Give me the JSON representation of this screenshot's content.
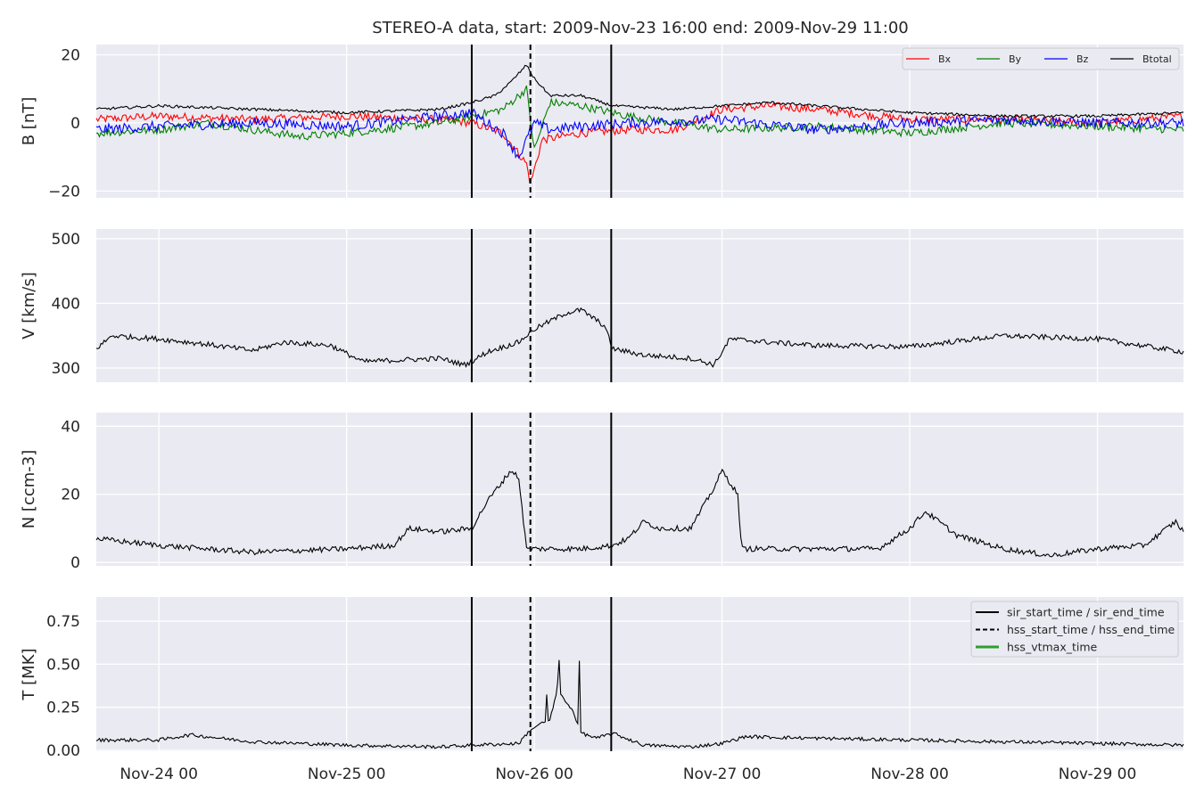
{
  "chart_data": {
    "type": "line",
    "title": "STEREO-A data, start: 2009-Nov-23 16:00  end: 2009-Nov-29 11:00",
    "x_range": [
      "2009-11-23 16:00",
      "2009-11-29 11:00"
    ],
    "x_ticks": [
      {
        "t": "2009-11-24 00:00",
        "label": "Nov-24 00"
      },
      {
        "t": "2009-11-25 00:00",
        "label": "Nov-25 00"
      },
      {
        "t": "2009-11-26 00:00",
        "label": "Nov-26 00"
      },
      {
        "t": "2009-11-27 00:00",
        "label": "Nov-27 00"
      },
      {
        "t": "2009-11-28 00:00",
        "label": "Nov-28 00"
      },
      {
        "t": "2009-11-29 00:00",
        "label": "Nov-29 00"
      }
    ],
    "event_lines": [
      {
        "t": "2009-11-25 16:00",
        "style": "solid"
      },
      {
        "t": "2009-11-25 23:30",
        "style": "dashed"
      },
      {
        "t": "2009-11-26 09:50",
        "style": "solid"
      }
    ],
    "panels": [
      {
        "ylabel": "B [nT]",
        "ylim": [
          -22,
          23
        ],
        "yticks": [
          20,
          0,
          -20
        ],
        "ytick_labels": [
          "20",
          "0",
          "−20"
        ],
        "legend": {
          "position": "top-right",
          "entries": [
            "Bx",
            "By",
            "Bz",
            "Btotal"
          ]
        },
        "series": [
          {
            "name": "Bx",
            "color": "#ff0000",
            "noise": 1.2,
            "points": [
              [
                "2009-11-23 16:00",
                1
              ],
              [
                "2009-11-24 00:00",
                2
              ],
              [
                "2009-11-24 12:00",
                1
              ],
              [
                "2009-11-25 00:00",
                2
              ],
              [
                "2009-11-25 12:00",
                1
              ],
              [
                "2009-11-25 16:00",
                0
              ],
              [
                "2009-11-25 20:00",
                -3
              ],
              [
                "2009-11-25 23:00",
                -12
              ],
              [
                "2009-11-25 23:30",
                -18
              ],
              [
                "2009-11-26 01:00",
                -5
              ],
              [
                "2009-11-26 06:00",
                -3
              ],
              [
                "2009-11-26 12:00",
                -2
              ],
              [
                "2009-11-26 18:00",
                -2
              ],
              [
                "2009-11-27 00:00",
                4
              ],
              [
                "2009-11-27 06:00",
                5
              ],
              [
                "2009-11-27 12:00",
                4
              ],
              [
                "2009-11-28 00:00",
                1
              ],
              [
                "2009-11-28 12:00",
                1
              ],
              [
                "2009-11-29 00:00",
                0
              ],
              [
                "2009-11-29 11:00",
                2
              ]
            ]
          },
          {
            "name": "By",
            "color": "#008000",
            "noise": 1.2,
            "points": [
              [
                "2009-11-23 16:00",
                -3
              ],
              [
                "2009-11-24 00:00",
                -2
              ],
              [
                "2009-11-24 06:00",
                0
              ],
              [
                "2009-11-24 18:00",
                -4
              ],
              [
                "2009-11-25 00:00",
                -3
              ],
              [
                "2009-11-25 12:00",
                0
              ],
              [
                "2009-11-25 16:00",
                2
              ],
              [
                "2009-11-25 20:00",
                4
              ],
              [
                "2009-11-25 23:00",
                10
              ],
              [
                "2009-11-26 00:00",
                -8
              ],
              [
                "2009-11-26 02:00",
                6
              ],
              [
                "2009-11-26 06:00",
                5
              ],
              [
                "2009-11-26 12:00",
                2
              ],
              [
                "2009-11-27 00:00",
                -2
              ],
              [
                "2009-11-27 12:00",
                -1
              ],
              [
                "2009-11-28 00:00",
                -3
              ],
              [
                "2009-11-28 12:00",
                0
              ],
              [
                "2009-11-29 00:00",
                -1
              ],
              [
                "2009-11-29 11:00",
                -2
              ]
            ]
          },
          {
            "name": "Bz",
            "color": "#0000ff",
            "noise": 1.5,
            "points": [
              [
                "2009-11-23 16:00",
                -2
              ],
              [
                "2009-11-24 00:00",
                -1
              ],
              [
                "2009-11-24 12:00",
                0
              ],
              [
                "2009-11-25 00:00",
                -1
              ],
              [
                "2009-11-25 12:00",
                2
              ],
              [
                "2009-11-25 16:00",
                3
              ],
              [
                "2009-11-25 20:00",
                -3
              ],
              [
                "2009-11-25 22:00",
                -10
              ],
              [
                "2009-11-26 00:00",
                0
              ],
              [
                "2009-11-26 02:00",
                -2
              ],
              [
                "2009-11-26 06:00",
                -1
              ],
              [
                "2009-11-26 12:00",
                0
              ],
              [
                "2009-11-27 00:00",
                1
              ],
              [
                "2009-11-27 12:00",
                -2
              ],
              [
                "2009-11-28 00:00",
                0
              ],
              [
                "2009-11-28 12:00",
                1
              ],
              [
                "2009-11-29 00:00",
                0
              ],
              [
                "2009-11-29 11:00",
                0
              ]
            ]
          },
          {
            "name": "Btotal",
            "color": "#000000",
            "noise": 0.4,
            "points": [
              [
                "2009-11-23 16:00",
                4
              ],
              [
                "2009-11-24 00:00",
                5
              ],
              [
                "2009-11-24 12:00",
                4
              ],
              [
                "2009-11-25 00:00",
                3
              ],
              [
                "2009-11-25 12:00",
                4
              ],
              [
                "2009-11-25 16:00",
                6
              ],
              [
                "2009-11-25 19:00",
                8
              ],
              [
                "2009-11-25 21:00",
                12
              ],
              [
                "2009-11-25 23:00",
                17
              ],
              [
                "2009-11-26 00:00",
                13
              ],
              [
                "2009-11-26 02:00",
                8
              ],
              [
                "2009-11-26 06:00",
                8
              ],
              [
                "2009-11-26 10:00",
                5
              ],
              [
                "2009-11-26 18:00",
                4
              ],
              [
                "2009-11-27 00:00",
                5
              ],
              [
                "2009-11-27 06:00",
                6
              ],
              [
                "2009-11-27 18:00",
                4
              ],
              [
                "2009-11-28 00:00",
                3
              ],
              [
                "2009-11-28 12:00",
                2
              ],
              [
                "2009-11-29 00:00",
                2
              ],
              [
                "2009-11-29 11:00",
                3
              ]
            ]
          }
        ]
      },
      {
        "ylabel": "V [km/s]",
        "ylim": [
          278,
          515
        ],
        "yticks": [
          500,
          400,
          300
        ],
        "ytick_labels": [
          "500",
          "400",
          "300"
        ],
        "series": [
          {
            "name": "V",
            "color": "#000000",
            "noise": 4,
            "points": [
              [
                "2009-11-23 16:00",
                330
              ],
              [
                "2009-11-23 18:00",
                350
              ],
              [
                "2009-11-24 00:00",
                345
              ],
              [
                "2009-11-24 06:00",
                337
              ],
              [
                "2009-11-24 12:00",
                327
              ],
              [
                "2009-11-24 16:00",
                340
              ],
              [
                "2009-11-24 22:00",
                335
              ],
              [
                "2009-11-25 02:00",
                310
              ],
              [
                "2009-11-25 12:00",
                315
              ],
              [
                "2009-11-25 15:00",
                305
              ],
              [
                "2009-11-25 16:00",
                310
              ],
              [
                "2009-11-25 18:00",
                325
              ],
              [
                "2009-11-25 22:00",
                340
              ],
              [
                "2009-11-26 00:00",
                360
              ],
              [
                "2009-11-26 04:00",
                385
              ],
              [
                "2009-11-26 06:00",
                390
              ],
              [
                "2009-11-26 09:00",
                365
              ],
              [
                "2009-11-26 10:00",
                330
              ],
              [
                "2009-11-26 14:00",
                320
              ],
              [
                "2009-11-26 20:00",
                315
              ],
              [
                "2009-11-26 23:00",
                305
              ],
              [
                "2009-11-27 01:00",
                345
              ],
              [
                "2009-11-27 06:00",
                340
              ],
              [
                "2009-11-27 12:00",
                335
              ],
              [
                "2009-11-28 00:00",
                333
              ],
              [
                "2009-11-28 12:00",
                350
              ],
              [
                "2009-11-29 00:00",
                345
              ],
              [
                "2009-11-29 11:00",
                325
              ]
            ]
          }
        ]
      },
      {
        "ylabel": "N [ccm-3]",
        "ylim": [
          -1,
          44
        ],
        "yticks": [
          40,
          20,
          0
        ],
        "ytick_labels": [
          "40",
          "20",
          "0"
        ],
        "series": [
          {
            "name": "N",
            "color": "#000000",
            "noise": 0.8,
            "points": [
              [
                "2009-11-23 16:00",
                7
              ],
              [
                "2009-11-24 00:00",
                5
              ],
              [
                "2009-11-24 06:00",
                4
              ],
              [
                "2009-11-24 12:00",
                3
              ],
              [
                "2009-11-25 00:00",
                4
              ],
              [
                "2009-11-25 06:00",
                5
              ],
              [
                "2009-11-25 08:00",
                10
              ],
              [
                "2009-11-25 12:00",
                9
              ],
              [
                "2009-11-25 16:00",
                10
              ],
              [
                "2009-11-25 18:00",
                18
              ],
              [
                "2009-11-25 20:00",
                24
              ],
              [
                "2009-11-25 21:00",
                27
              ],
              [
                "2009-11-25 22:00",
                25
              ],
              [
                "2009-11-25 23:00",
                4
              ],
              [
                "2009-11-26 06:00",
                4
              ],
              [
                "2009-11-26 10:00",
                5
              ],
              [
                "2009-11-26 12:00",
                7
              ],
              [
                "2009-11-26 14:00",
                12
              ],
              [
                "2009-11-26 16:00",
                10
              ],
              [
                "2009-11-26 20:00",
                10
              ],
              [
                "2009-11-26 23:00",
                22
              ],
              [
                "2009-11-27 00:00",
                27
              ],
              [
                "2009-11-27 02:00",
                20
              ],
              [
                "2009-11-27 02:30",
                4
              ],
              [
                "2009-11-27 12:00",
                4
              ],
              [
                "2009-11-27 20:00",
                4
              ],
              [
                "2009-11-28 00:00",
                10
              ],
              [
                "2009-11-28 02:00",
                15
              ],
              [
                "2009-11-28 06:00",
                8
              ],
              [
                "2009-11-28 12:00",
                4
              ],
              [
                "2009-11-28 18:00",
                2
              ],
              [
                "2009-11-29 00:00",
                4
              ],
              [
                "2009-11-29 06:00",
                5
              ],
              [
                "2009-11-29 10:00",
                12
              ],
              [
                "2009-11-29 11:00",
                9
              ]
            ]
          }
        ]
      },
      {
        "ylabel": "T [MK]",
        "ylim": [
          -0.005,
          0.89
        ],
        "yticks": [
          0.75,
          0.5,
          0.25,
          0.0
        ],
        "ytick_labels": [
          "0.75",
          "0.50",
          "0.25",
          "0.00"
        ],
        "legend": {
          "position": "top-right",
          "entries": [
            "sir_start_time / sir_end_time",
            "hss_start_time / hss_end_time",
            "hss_vtmax_time"
          ],
          "styles": [
            "solid",
            "dashed",
            "green"
          ]
        },
        "series": [
          {
            "name": "T",
            "color": "#000000",
            "noise": 0.01,
            "points": [
              [
                "2009-11-23 16:00",
                0.06
              ],
              [
                "2009-11-24 00:00",
                0.06
              ],
              [
                "2009-11-24 04:00",
                0.09
              ],
              [
                "2009-11-24 12:00",
                0.05
              ],
              [
                "2009-11-25 00:00",
                0.03
              ],
              [
                "2009-11-25 12:00",
                0.02
              ],
              [
                "2009-11-25 16:00",
                0.03
              ],
              [
                "2009-11-25 22:00",
                0.04
              ],
              [
                "2009-11-25 23:30",
                0.12
              ],
              [
                "2009-11-26 02:00",
                0.18
              ],
              [
                "2009-11-26 03:00",
                0.35
              ],
              [
                "2009-11-26 05:00",
                0.22
              ],
              [
                "2009-11-26 06:00",
                0.1
              ],
              [
                "2009-11-26 08:00",
                0.07
              ],
              [
                "2009-11-26 10:00",
                0.1
              ],
              [
                "2009-11-26 14:00",
                0.03
              ],
              [
                "2009-11-26 20:00",
                0.02
              ],
              [
                "2009-11-27 00:00",
                0.04
              ],
              [
                "2009-11-27 03:00",
                0.08
              ],
              [
                "2009-11-27 12:00",
                0.07
              ],
              [
                "2009-11-28 00:00",
                0.06
              ],
              [
                "2009-11-28 12:00",
                0.05
              ],
              [
                "2009-11-29 00:00",
                0.04
              ],
              [
                "2009-11-29 11:00",
                0.03
              ]
            ]
          }
        ]
      }
    ]
  }
}
